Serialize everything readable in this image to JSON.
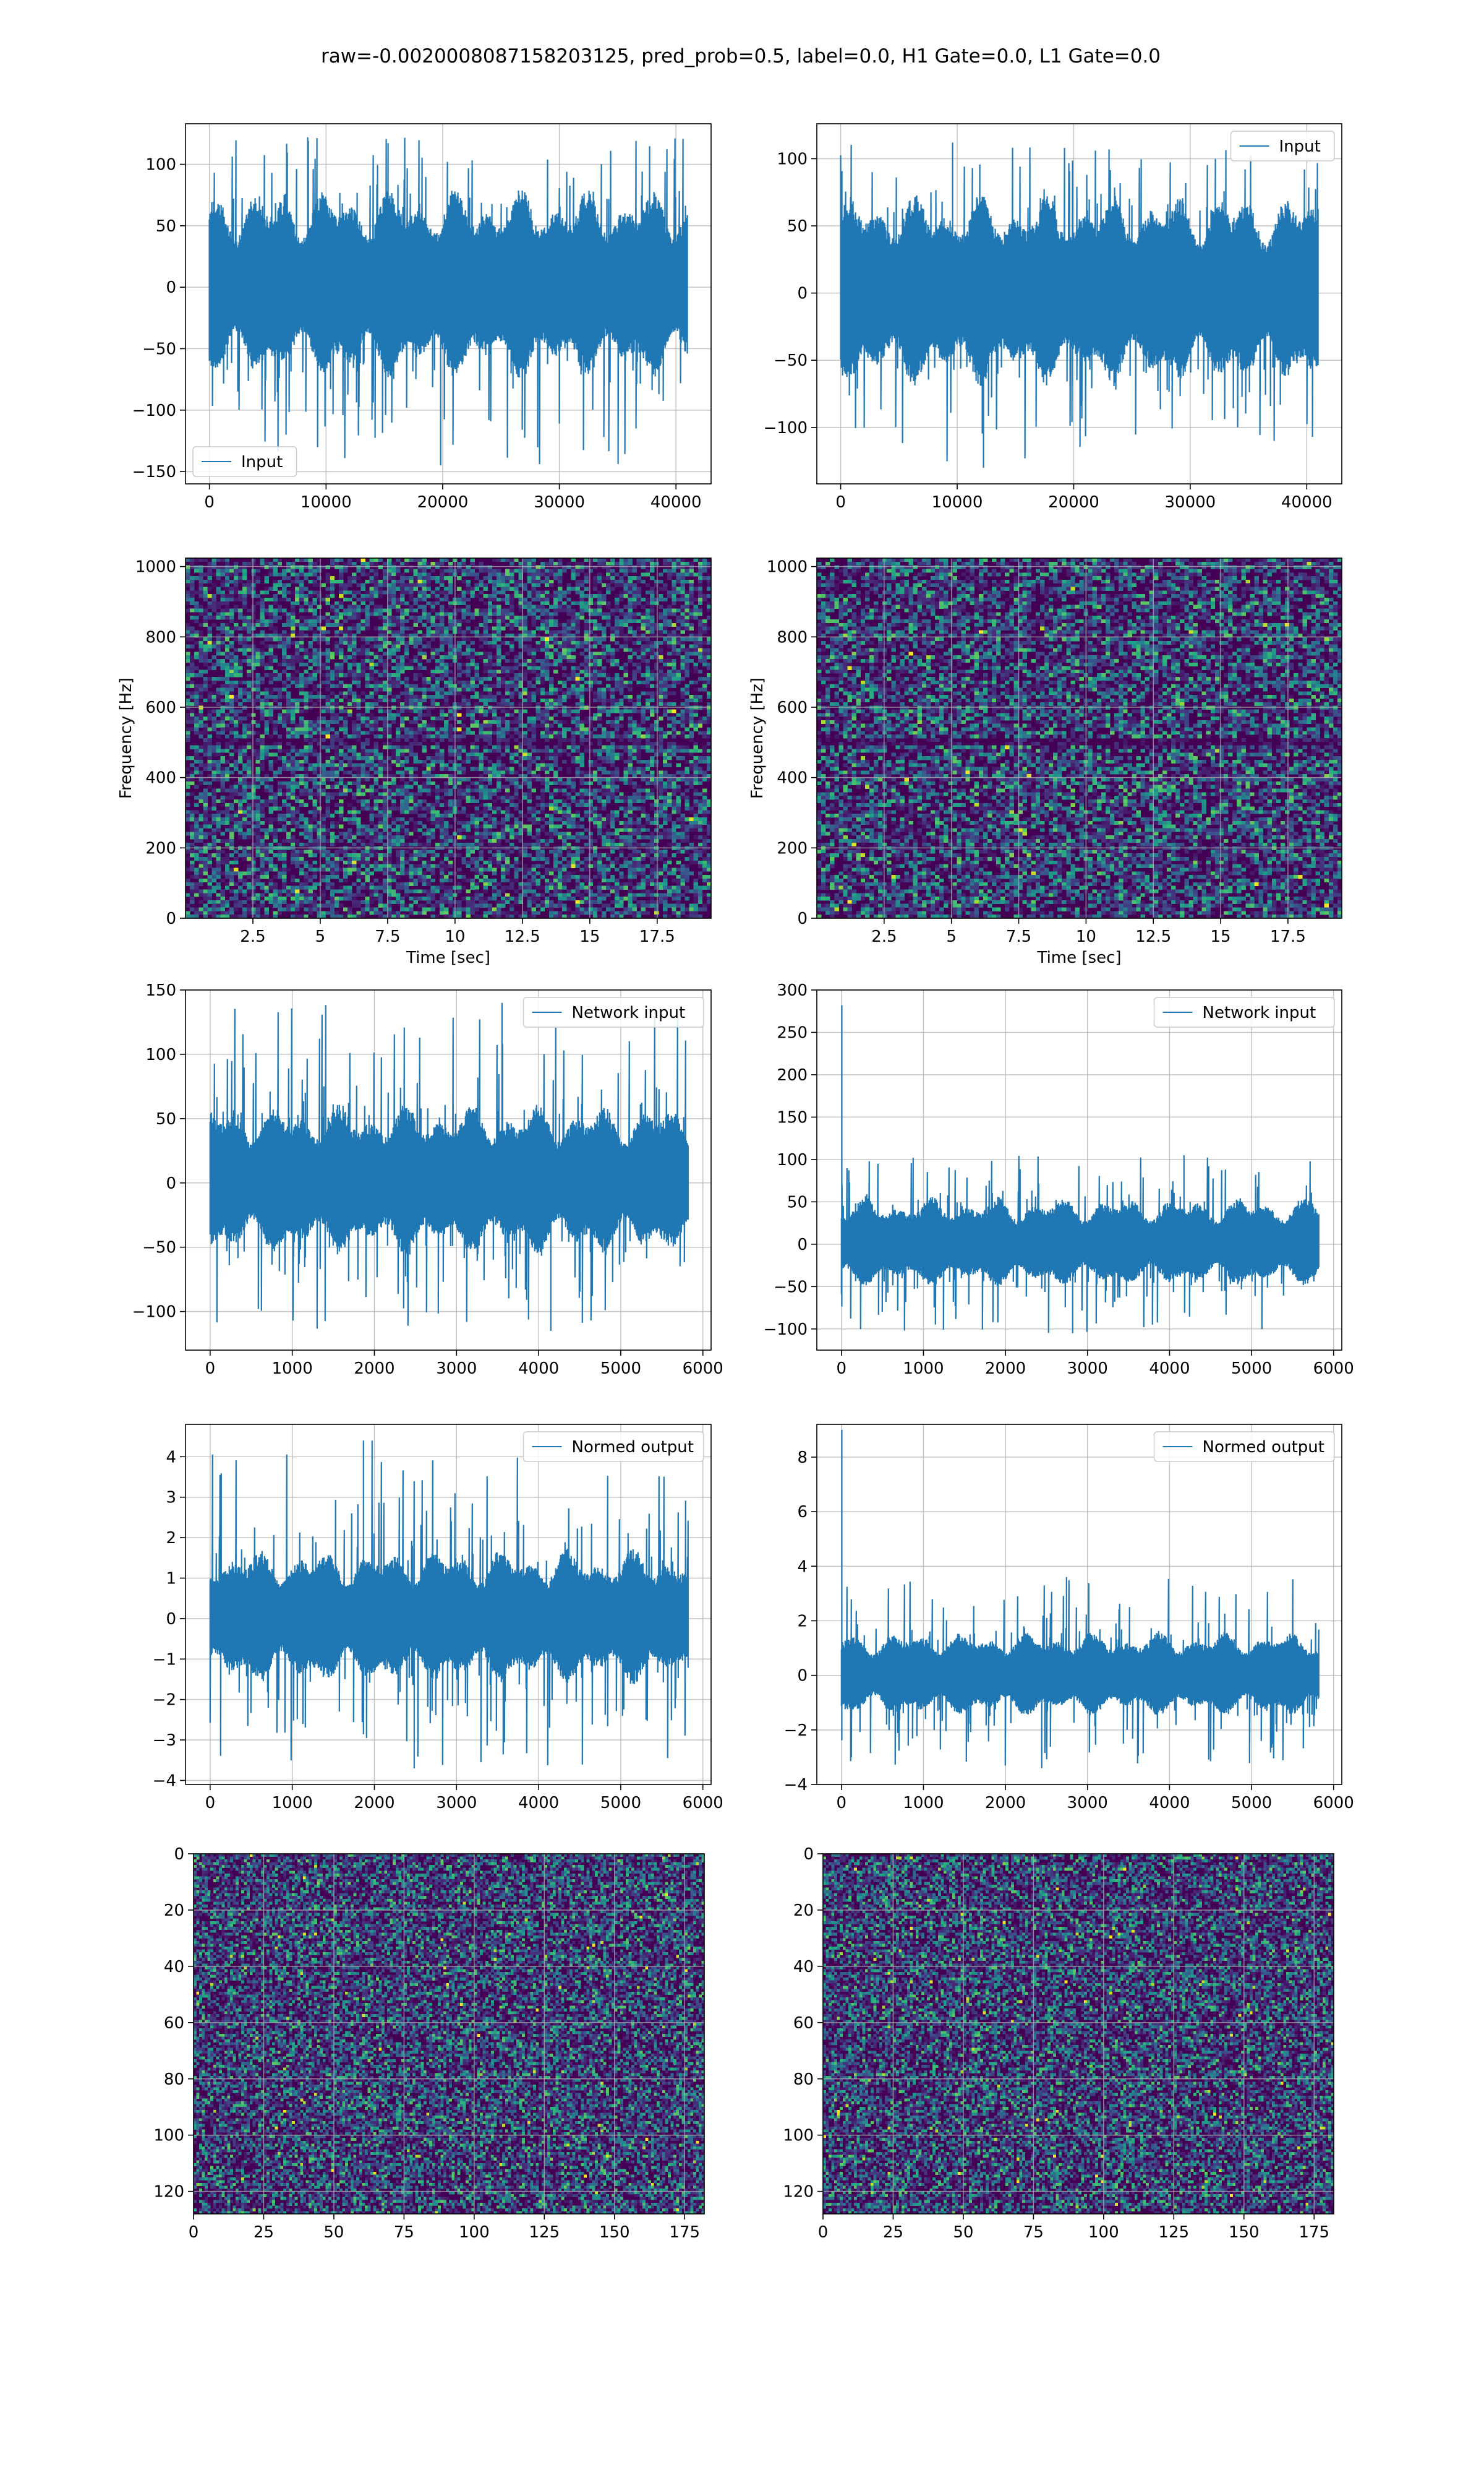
{
  "suptitle": "raw=-0.0020008087158203125, pred_prob=0.5, label=0.0, H1 Gate=0.0, L1 Gate=0.0",
  "colors": {
    "line": "#1f77b4",
    "grid": "#b0b0b0",
    "viridis_low": "#440154",
    "viridis_high": "#fde725"
  },
  "chart_data": [
    {
      "panel": "row1-left",
      "type": "line",
      "n_samples": 40960,
      "xlim": [
        -2048,
        43008
      ],
      "ylim": [
        -160,
        133
      ],
      "xticks": [
        0,
        10000,
        20000,
        30000,
        40000
      ],
      "yticks": [
        -150,
        -100,
        -50,
        0,
        50,
        100
      ],
      "envelope": {
        "typical": [
          -60,
          65
        ],
        "extremes": [
          -145,
          122
        ]
      },
      "legend": {
        "labels": [
          "Input"
        ],
        "loc": "lower left"
      },
      "xlabel": "",
      "ylabel": "",
      "grid": true
    },
    {
      "panel": "row1-right",
      "type": "line",
      "n_samples": 40960,
      "xlim": [
        -2048,
        43008
      ],
      "ylim": [
        -142,
        126
      ],
      "xticks": [
        0,
        10000,
        20000,
        30000,
        40000
      ],
      "yticks": [
        -100,
        -50,
        0,
        50,
        100
      ],
      "envelope": {
        "typical": [
          -55,
          60
        ],
        "extremes": [
          -130,
          112
        ]
      },
      "legend": {
        "labels": [
          "Input"
        ],
        "loc": "upper right"
      },
      "xlabel": "",
      "ylabel": "",
      "grid": true
    },
    {
      "panel": "row2-left",
      "type": "heatmap",
      "xlim": [
        0,
        19.5
      ],
      "ylim": [
        0,
        1024
      ],
      "xticks": [
        2.5,
        5.0,
        7.5,
        10.0,
        12.5,
        15.0,
        17.5
      ],
      "yticks": [
        0,
        200,
        400,
        600,
        800,
        1000
      ],
      "xlabel": "Time [sec]",
      "ylabel": "Frequency [Hz]",
      "features": {
        "dark_band_hz": [
          490,
          515
        ]
      },
      "colormap": "viridis",
      "grid": true
    },
    {
      "panel": "row2-right",
      "type": "heatmap",
      "xlim": [
        0,
        19.5
      ],
      "ylim": [
        0,
        1024
      ],
      "xticks": [
        2.5,
        5.0,
        7.5,
        10.0,
        12.5,
        15.0,
        17.5
      ],
      "yticks": [
        0,
        200,
        400,
        600,
        800,
        1000
      ],
      "xlabel": "Time [sec]",
      "ylabel": "Frequency [Hz]",
      "features": {
        "dark_band_hz": [
          490,
          515
        ]
      },
      "colormap": "viridis",
      "grid": true
    },
    {
      "panel": "row3-left",
      "type": "line",
      "n_samples": 5820,
      "xlim": [
        -300,
        6100
      ],
      "ylim": [
        -130,
        150
      ],
      "xticks": [
        0,
        1000,
        2000,
        3000,
        4000,
        5000,
        6000
      ],
      "yticks": [
        -100,
        -50,
        0,
        50,
        100,
        150
      ],
      "envelope": {
        "typical": [
          -45,
          50
        ],
        "extremes": [
          -115,
          140
        ]
      },
      "legend": {
        "labels": [
          "Network input"
        ],
        "loc": "upper right"
      },
      "xlabel": "",
      "ylabel": "",
      "grid": true
    },
    {
      "panel": "row3-right",
      "type": "line",
      "n_samples": 5820,
      "xlim": [
        -300,
        6100
      ],
      "ylim": [
        -125,
        300
      ],
      "xticks": [
        0,
        1000,
        2000,
        3000,
        4000,
        5000,
        6000
      ],
      "yticks": [
        -100,
        -50,
        0,
        50,
        100,
        150,
        200,
        250,
        300
      ],
      "envelope": {
        "typical": [
          -40,
          45
        ],
        "extremes": [
          -105,
          105
        ]
      },
      "spike": {
        "x": 5,
        "y": 282
      },
      "legend": {
        "labels": [
          "Network input"
        ],
        "loc": "upper right"
      },
      "xlabel": "",
      "ylabel": "",
      "grid": true
    },
    {
      "panel": "row4-left",
      "type": "line",
      "n_samples": 5820,
      "xlim": [
        -300,
        6100
      ],
      "ylim": [
        -4.1,
        4.8
      ],
      "xticks": [
        0,
        1000,
        2000,
        3000,
        4000,
        5000,
        6000
      ],
      "yticks": [
        -4,
        -3,
        -2,
        -1,
        0,
        1,
        2,
        3,
        4
      ],
      "envelope": {
        "typical": [
          -1.3,
          1.4
        ],
        "extremes": [
          -3.7,
          4.4
        ]
      },
      "legend": {
        "labels": [
          "Normed output"
        ],
        "loc": "upper right"
      },
      "xlabel": "",
      "ylabel": "",
      "grid": true
    },
    {
      "panel": "row4-right",
      "type": "line",
      "n_samples": 5820,
      "xlim": [
        -300,
        6100
      ],
      "ylim": [
        -4,
        9.2
      ],
      "xticks": [
        0,
        1000,
        2000,
        3000,
        4000,
        5000,
        6000
      ],
      "yticks": [
        -4,
        -2,
        0,
        2,
        4,
        6,
        8
      ],
      "envelope": {
        "typical": [
          -1.2,
          1.3
        ],
        "extremes": [
          -3.4,
          3.6
        ]
      },
      "spike": {
        "x": 5,
        "y": 9.0
      },
      "legend": {
        "labels": [
          "Normed output"
        ],
        "loc": "upper right"
      },
      "xlabel": "",
      "ylabel": "",
      "grid": true
    },
    {
      "panel": "row5-left",
      "type": "heatmap",
      "shape": [
        128,
        182
      ],
      "xlim": [
        0,
        182
      ],
      "ylim": [
        128,
        0
      ],
      "xticks": [
        0,
        25,
        50,
        75,
        100,
        125,
        150,
        175
      ],
      "yticks": [
        0,
        20,
        40,
        60,
        80,
        100,
        120
      ],
      "colormap": "viridis",
      "grid": true,
      "xlabel": "",
      "ylabel": ""
    },
    {
      "panel": "row5-right",
      "type": "heatmap",
      "shape": [
        128,
        182
      ],
      "xlim": [
        0,
        182
      ],
      "ylim": [
        128,
        0
      ],
      "xticks": [
        0,
        25,
        50,
        75,
        100,
        125,
        150,
        175
      ],
      "yticks": [
        0,
        20,
        40,
        60,
        80,
        100,
        120
      ],
      "colormap": "viridis",
      "grid": true,
      "xlabel": "",
      "ylabel": ""
    }
  ]
}
